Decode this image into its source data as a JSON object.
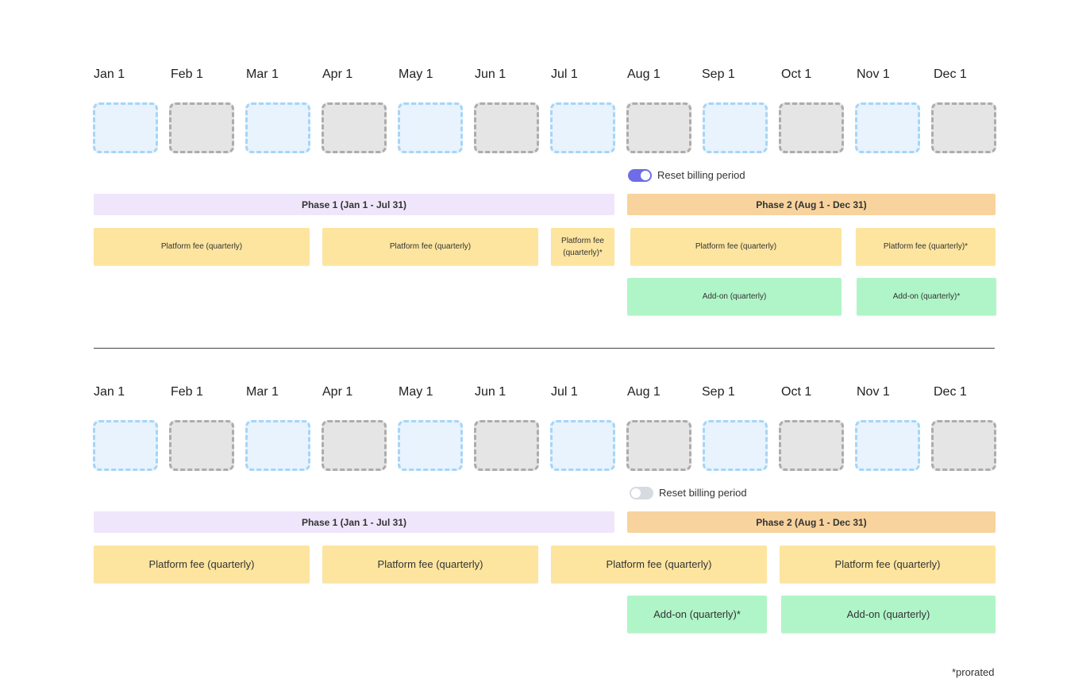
{
  "months": [
    "Jan 1",
    "Feb 1",
    "Mar 1",
    "Apr 1",
    "May 1",
    "Jun 1",
    "Jul 1",
    "Aug 1",
    "Sep 1",
    "Oct 1",
    "Nov 1",
    "Dec 1"
  ],
  "diagrams": [
    {
      "toggle": {
        "label": "Reset billing period",
        "state": "on"
      },
      "phase1": "Phase 1 (Jan 1 - Jul 31)",
      "phase2": "Phase 2 (Aug 1 - Dec 31)",
      "platform_fees": [
        "Platform fee (quarterly)",
        "Platform fee (quarterly)",
        "Platform fee (quarterly)*",
        "Platform fee (quarterly)",
        "Platform fee (quarterly)*"
      ],
      "addons": [
        "Add-on (quarterly)",
        "Add-on (quarterly)*"
      ]
    },
    {
      "toggle": {
        "label": "Reset billing period",
        "state": "off"
      },
      "phase1": "Phase 1 (Jan 1 - Jul 31)",
      "phase2": "Phase 2 (Aug 1 - Dec 31)",
      "platform_fees": [
        "Platform fee (quarterly)",
        "Platform fee (quarterly)",
        "Platform fee (quarterly)",
        "Platform fee (quarterly)"
      ],
      "addons": [
        "Add-on (quarterly)*",
        "Add-on (quarterly)"
      ]
    }
  ],
  "footnote": "*prorated",
  "colors": {
    "slot_blue": "#e8f3fd",
    "slot_gray": "#e5e5e5",
    "phase1": "#efe6fb",
    "phase2": "#f8d39d",
    "platform_fee": "#fde59f",
    "addon": "#b0f5c8",
    "toggle_on": "#6e6de6",
    "toggle_off": "#d6dbe2"
  }
}
